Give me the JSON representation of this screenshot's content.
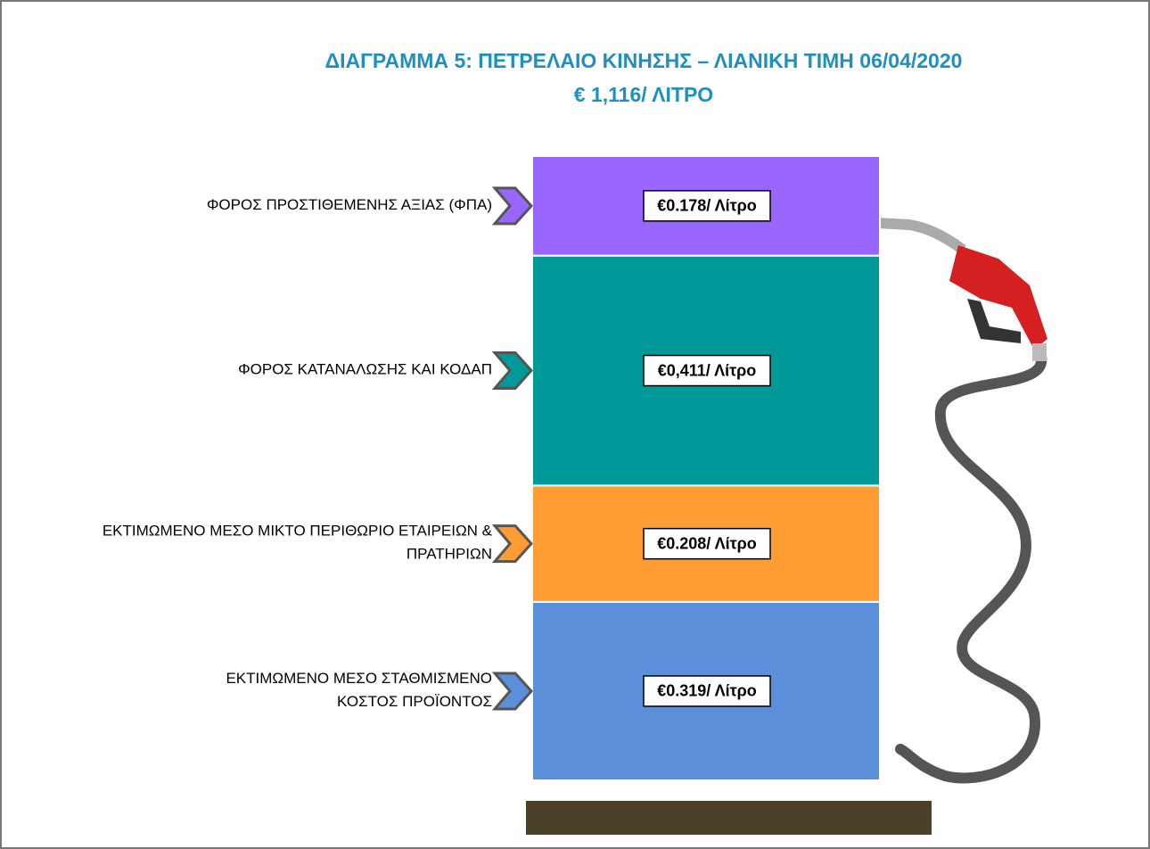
{
  "chart_data": {
    "type": "stacked-bar",
    "title": "ΔΙΑΓΡΑΜΜΑ 5: ΠΕΤΡΕΛΑΙΟ ΚΙΝΗΣΗΣ – ΛΙΑΝΙΚΗ ΤΙΜΗ 06/04/2020",
    "subtitle": "€ 1,116/ ΛΙΤΡΟ",
    "series": [
      {
        "name": "ΕΚΤΙΜΩΜΕΝΟ  ΜΕΣΟ ΣΤΑΘΜΙΣΜΕΝΟ\nΚΟΣΤΟΣ ΠΡΟΪΟΝΤΟΣ",
        "color": "#5b8fd9",
        "values": [
          0.319
        ],
        "value_labels": [
          "€0.319/ Λίτρο"
        ]
      },
      {
        "name": "ΕΚΤΙΜΩΜΕΝΟ  ΜΕΣΟ ΜΙΚΤΟ ΠΕΡΙΘΩΡΙΟ ΕΤΑΙΡΕΙΩΝ &\nΠΡΑΤΗΡΙΩΝ",
        "color": "#ff9c33",
        "values": [
          0.208
        ],
        "value_labels": [
          "€0.208/ Λίτρο"
        ]
      },
      {
        "name": "ΦΟΡΟΣ ΚΑΤΑΝΑΛΩΣΗΣ  ΚΑΙ ΚΟΔΑΠ",
        "color": "#009999",
        "values": [
          0.411
        ],
        "value_labels": [
          "€0,411/ Λίτρο"
        ]
      },
      {
        "name": "ΦΟΡΟΣ ΠΡΟΣΤΙΘΕΜΕΝΗΣ ΑΞΙΑΣ (ΦΠΑ)",
        "color": "#9966ff",
        "values": [
          0.178
        ],
        "value_labels": [
          "€0.178/ Λίτρο"
        ]
      }
    ]
  }
}
